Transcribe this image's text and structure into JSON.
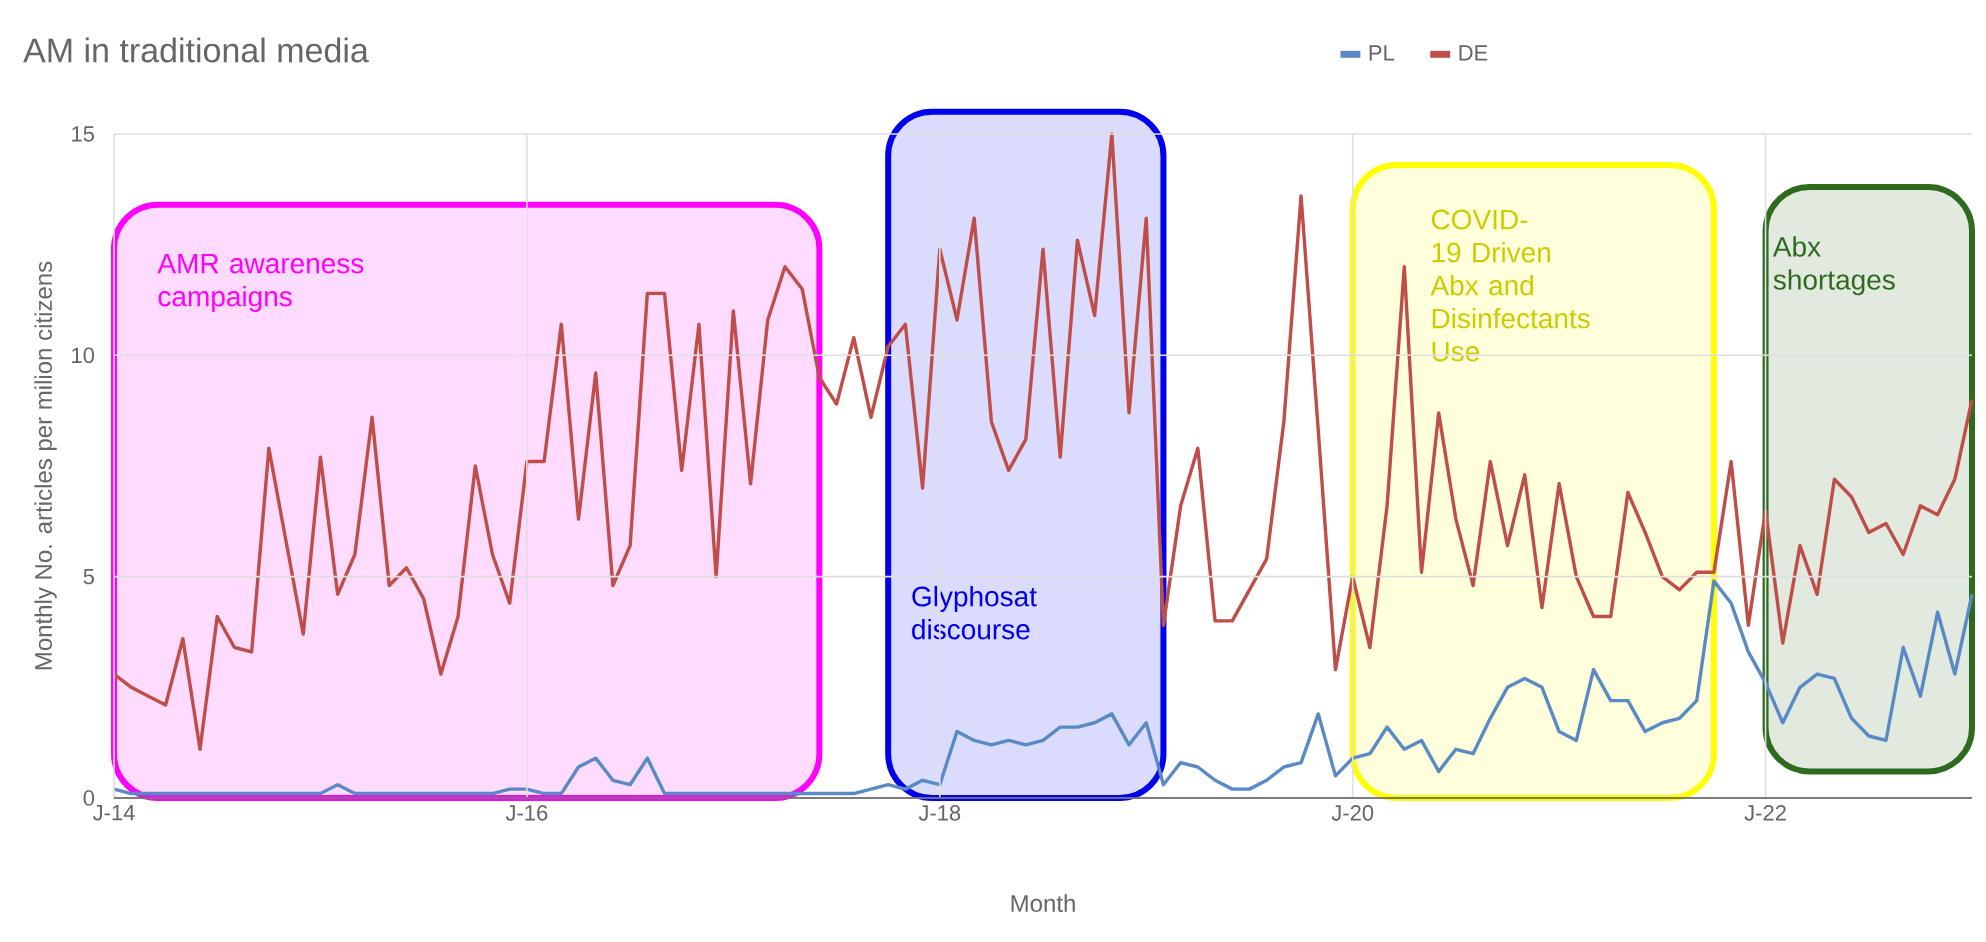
{
  "chart_data": {
    "type": "line",
    "title": "AM in traditional media",
    "xlabel": "Month",
    "ylabel": "Monthly No. articles per milion citizens",
    "x": [
      "2014-01",
      "2014-02",
      "2014-03",
      "2014-04",
      "2014-05",
      "2014-06",
      "2014-07",
      "2014-08",
      "2014-09",
      "2014-10",
      "2014-11",
      "2014-12",
      "2015-01",
      "2015-02",
      "2015-03",
      "2015-04",
      "2015-05",
      "2015-06",
      "2015-07",
      "2015-08",
      "2015-09",
      "2015-10",
      "2015-11",
      "2015-12",
      "2016-01",
      "2016-02",
      "2016-03",
      "2016-04",
      "2016-05",
      "2016-06",
      "2016-07",
      "2016-08",
      "2016-09",
      "2016-10",
      "2016-11",
      "2016-12",
      "2017-01",
      "2017-02",
      "2017-03",
      "2017-04",
      "2017-05",
      "2017-06",
      "2017-07",
      "2017-08",
      "2017-09",
      "2017-10",
      "2017-11",
      "2017-12",
      "2018-01",
      "2018-02",
      "2018-03",
      "2018-04",
      "2018-05",
      "2018-06",
      "2018-07",
      "2018-08",
      "2018-09",
      "2018-10",
      "2018-11",
      "2018-12",
      "2019-01",
      "2019-02",
      "2019-03",
      "2019-04",
      "2019-05",
      "2019-06",
      "2019-07",
      "2019-08",
      "2019-09",
      "2019-10",
      "2019-11",
      "2019-12",
      "2020-01",
      "2020-02",
      "2020-03",
      "2020-04",
      "2020-05",
      "2020-06",
      "2020-07",
      "2020-08",
      "2020-09",
      "2020-10",
      "2020-11",
      "2020-12",
      "2021-01",
      "2021-02",
      "2021-03",
      "2021-04",
      "2021-05",
      "2021-06",
      "2021-07",
      "2021-08",
      "2021-09",
      "2021-10",
      "2021-11",
      "2021-12",
      "2022-01",
      "2022-02",
      "2022-03",
      "2022-04",
      "2022-05",
      "2022-06",
      "2022-07",
      "2022-08",
      "2022-09",
      "2022-10",
      "2022-11",
      "2022-12",
      "2023-01"
    ],
    "series": [
      {
        "name": "PL",
        "color": "#5a8ac6",
        "values": [
          0.2,
          0.1,
          0.1,
          0.1,
          0.1,
          0.1,
          0.1,
          0.1,
          0.1,
          0.1,
          0.1,
          0.1,
          0.1,
          0.3,
          0.1,
          0.1,
          0.1,
          0.1,
          0.1,
          0.1,
          0.1,
          0.1,
          0.1,
          0.2,
          0.2,
          0.1,
          0.1,
          0.7,
          0.9,
          0.4,
          0.3,
          0.9,
          0.1,
          0.1,
          0.1,
          0.1,
          0.1,
          0.1,
          0.1,
          0.1,
          0.1,
          0.1,
          0.1,
          0.1,
          0.2,
          0.3,
          0.2,
          0.4,
          0.3,
          1.5,
          1.3,
          1.2,
          1.3,
          1.2,
          1.3,
          1.6,
          1.6,
          1.7,
          1.9,
          1.2,
          1.7,
          0.3,
          0.8,
          0.7,
          0.4,
          0.2,
          0.2,
          0.4,
          0.7,
          0.8,
          1.9,
          0.5,
          0.9,
          1.0,
          1.6,
          1.1,
          1.3,
          0.6,
          1.1,
          1.0,
          1.8,
          2.5,
          2.7,
          2.5,
          1.5,
          1.3,
          2.9,
          2.2,
          2.2,
          1.5,
          1.7,
          1.8,
          2.2,
          4.9,
          4.4,
          3.3,
          2.6,
          1.7,
          2.5,
          2.8,
          2.7,
          1.8,
          1.4,
          1.3,
          3.4,
          2.3,
          4.2,
          2.8,
          4.6
        ]
      },
      {
        "name": "DE",
        "color": "#bf4e48",
        "values": [
          2.8,
          2.5,
          2.3,
          2.1,
          3.6,
          1.1,
          4.1,
          3.4,
          3.3,
          7.9,
          5.8,
          3.7,
          7.7,
          4.6,
          5.5,
          8.6,
          4.8,
          5.2,
          4.5,
          2.8,
          4.1,
          7.5,
          5.5,
          4.4,
          7.6,
          7.6,
          10.7,
          6.3,
          9.6,
          4.8,
          5.7,
          11.4,
          11.4,
          7.4,
          10.7,
          5.0,
          11.0,
          7.1,
          10.8,
          12.0,
          11.5,
          9.5,
          8.9,
          10.4,
          8.6,
          10.2,
          10.7,
          7.0,
          12.4,
          10.8,
          13.1,
          8.5,
          7.4,
          8.1,
          12.4,
          7.7,
          12.6,
          10.9,
          15.0,
          8.7,
          13.1,
          3.9,
          6.6,
          7.9,
          4.0,
          4.0,
          4.7,
          5.4,
          8.5,
          13.6,
          8.3,
          2.9,
          5.0,
          3.4,
          6.6,
          12.0,
          5.1,
          8.7,
          6.3,
          4.8,
          7.6,
          5.7,
          7.3,
          4.3,
          7.1,
          5.0,
          4.1,
          4.1,
          6.9,
          6.0,
          5.0,
          4.7,
          5.1,
          5.1,
          7.6,
          3.9,
          6.5,
          3.5,
          5.7,
          4.6,
          7.2,
          6.8,
          6.0,
          6.2,
          5.5,
          6.6,
          6.4,
          7.2,
          9.0
        ]
      }
    ],
    "xlim": [
      "2014-01",
      "2023-01"
    ],
    "xticks": [
      {
        "value": "2014-01",
        "label": "J-14"
      },
      {
        "value": "2016-01",
        "label": "J-16"
      },
      {
        "value": "2018-01",
        "label": "J-18"
      },
      {
        "value": "2020-01",
        "label": "J-20"
      },
      {
        "value": "2022-01",
        "label": "J-22"
      }
    ],
    "ylim": [
      0,
      15
    ],
    "yticks": [
      0,
      5,
      10,
      15
    ],
    "grid": true,
    "legend": "top",
    "bands": [
      {
        "axis": "x",
        "from": "2014-01",
        "to": "2017-06",
        "label": "AMR awareness campaigns",
        "color": "#ff00ff"
      },
      {
        "axis": "x",
        "from": "2017-10",
        "to": "2019-02",
        "label": "Glyphosat discourse",
        "color": "#0000ee"
      },
      {
        "axis": "x",
        "from": "2020-01",
        "to": "2021-10",
        "label": "COVID-19 Driven Abx and Disinfectants Use",
        "color": "#ffff00"
      },
      {
        "axis": "x",
        "from": "2022-01",
        "to": "2023-01",
        "label": "Abx shortages",
        "color": "#2e6b1e"
      }
    ]
  }
}
